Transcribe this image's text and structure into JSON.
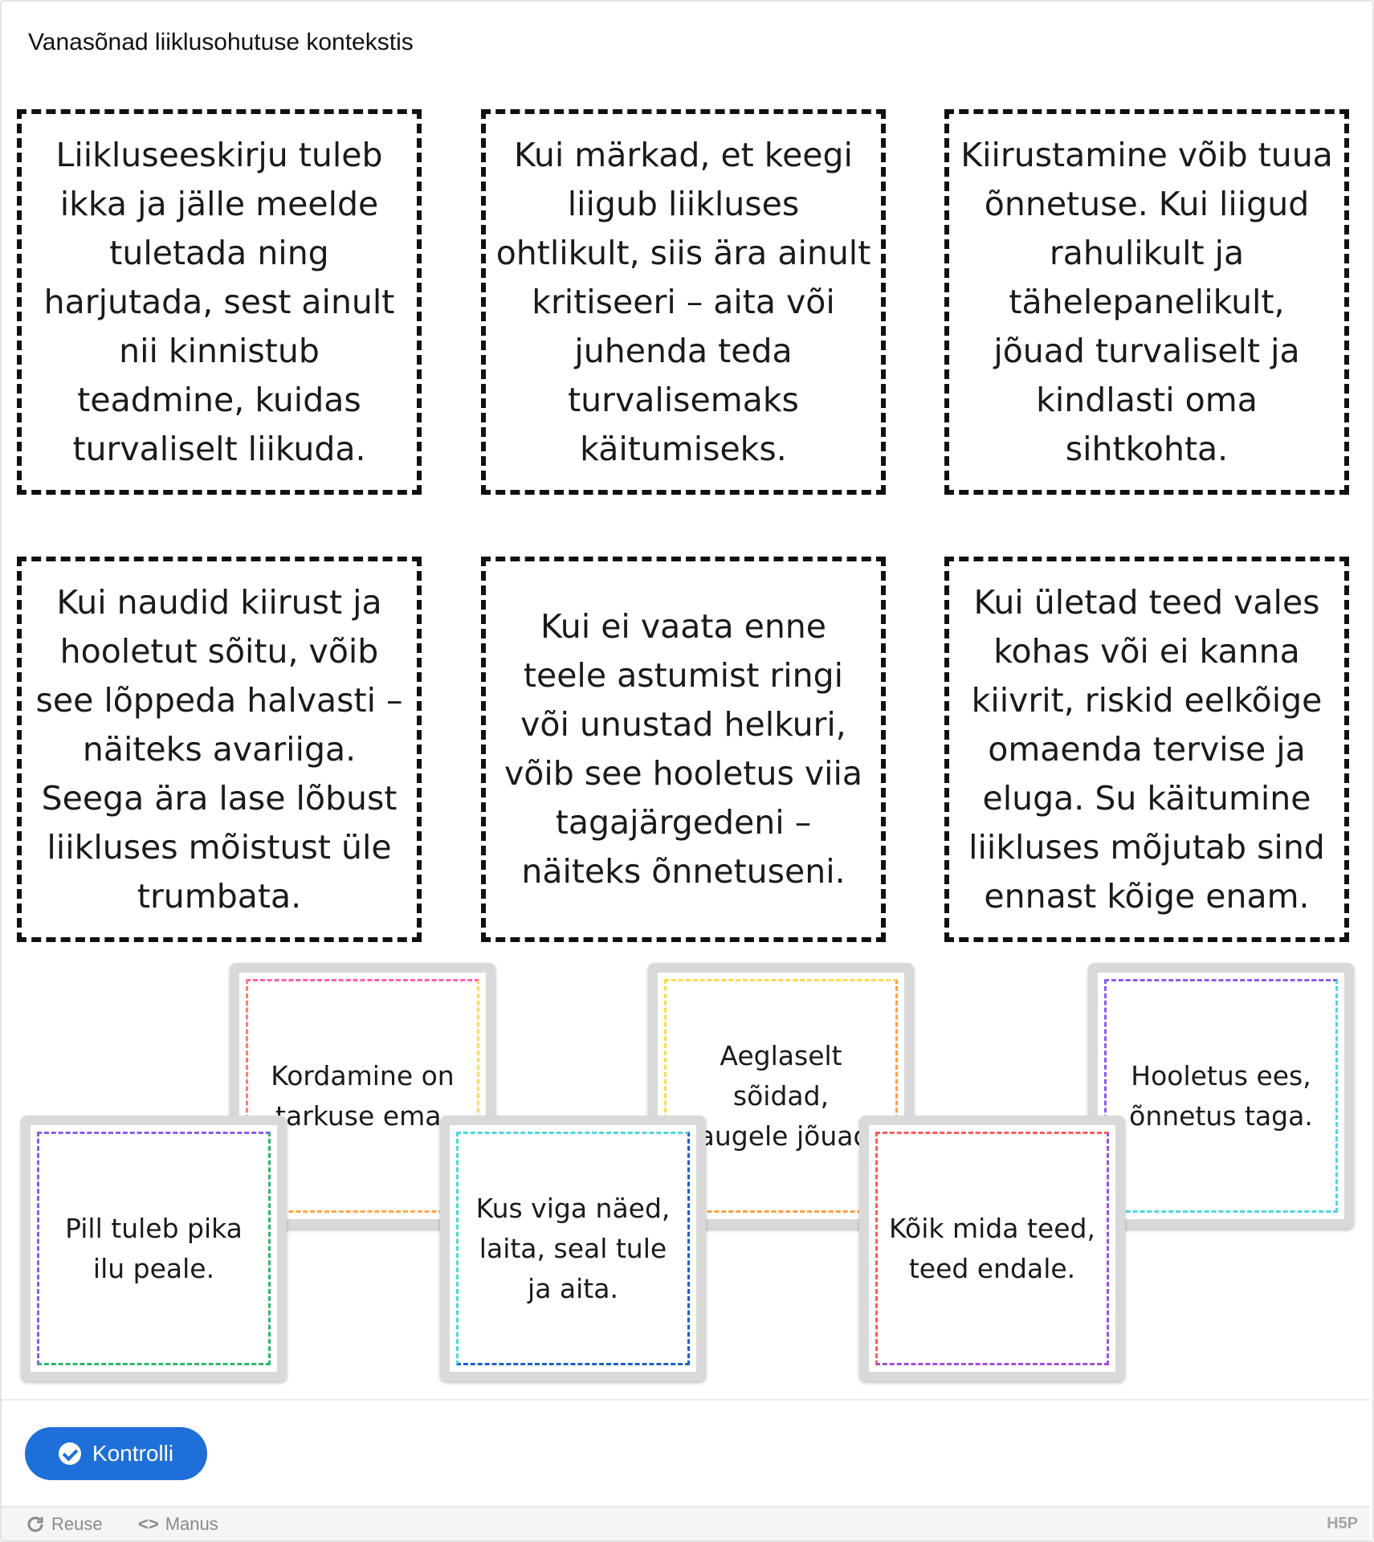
{
  "title": "Vanasõnad liiklusohutuse kontekstis",
  "dropzones": [
    {
      "text": "Liikluseeskirju tuleb ikka ja jälle meelde tuletada ning harjutada, sest ainult nii kinnistub teadmine, kuidas turvaliselt liikuda."
    },
    {
      "text": "Kui märkad, et keegi liigub liikluses ohtlikult, siis ära ainult kritiseeri – aita või juhenda teda turvalisemaks käitumiseks."
    },
    {
      "text": "Kiirustamine võib tuua õnnetuse. Kui liigud rahulikult ja tähelepanelikult, jõuad turvaliselt ja kindlasti oma sihtkohta."
    },
    {
      "text": "Kui naudid kiirust ja hooletut sõitu, võib see lõppeda halvasti – näiteks avariiga. Seega ära lase lõbust liikluses mõistust üle trumbata."
    },
    {
      "text": "Kui ei vaata enne teele astumist ringi või unustad helkuri, võib see hooletus viia tagajärgedeni – näiteks õnnetuseni."
    },
    {
      "text": "Kui ületad teed vales kohas või ei kanna kiivrit, riskid eelkõige omaenda tervise ja eluga. Su käitumine liikluses mõjutab sind ennast kõige enam."
    }
  ],
  "cards": [
    {
      "text": "Kordamine on tarkuse ema.",
      "border_colors": [
        "#ff5fb0",
        "#ffd94a",
        "#ffa84a",
        "#ff7a7a"
      ]
    },
    {
      "text": "Aeglaselt sõidad, kaugele jõuad.",
      "border_colors": [
        "#ffd94a",
        "#ff9f43",
        "#ff9f43",
        "#ffd94a"
      ]
    },
    {
      "text": "Hooletus ees, õnnetus taga.",
      "border_colors": [
        "#8a5cf0",
        "#4fd6e0",
        "#4fd6e0",
        "#8a5cf0"
      ]
    },
    {
      "text": "Pill tuleb pika ilu peale.",
      "border_colors": [
        "#8a5cf0",
        "#2eb86e",
        "#2eb86e",
        "#8a5cf0"
      ]
    },
    {
      "text": "Kus viga näed, laita, seal tule ja aita.",
      "border_colors": [
        "#4fd6e0",
        "#1f5fc8",
        "#1f5fc8",
        "#4fd6e0"
      ]
    },
    {
      "text": "Kõik mida teed, teed endale.",
      "border_colors": [
        "#ff5a5a",
        "#a24fe0",
        "#a24fe0",
        "#ff5a5a"
      ]
    }
  ],
  "actions": {
    "check_label": "Kontrolli"
  },
  "footer": {
    "reuse_label": "Reuse",
    "embed_label": "Manus",
    "logo": "H5P"
  }
}
